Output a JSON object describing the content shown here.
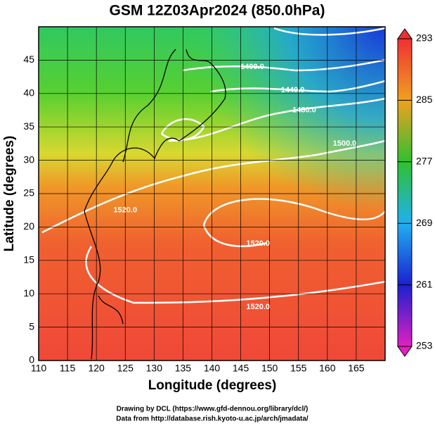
{
  "chart_data": {
    "type": "map",
    "title": "GSM 12Z03Apr2024 (850.0hPa)",
    "xlabel": "Longitude (degrees)",
    "ylabel": "Latitude  (degrees)",
    "xlim": [
      110,
      170
    ],
    "ylim": [
      0,
      50
    ],
    "xticks": [
      110,
      115,
      120,
      125,
      130,
      135,
      140,
      145,
      150,
      155,
      160,
      165
    ],
    "yticks": [
      0,
      5,
      10,
      15,
      20,
      25,
      30,
      35,
      40,
      45
    ],
    "grid": true,
    "colorbar": {
      "lim": [
        253,
        293
      ],
      "ticks": [
        253,
        261,
        269,
        277,
        285,
        293
      ],
      "colors": [
        "#e020c0",
        "#1a20d0",
        "#20b0f0",
        "#30c030",
        "#f0a020",
        "#f03030"
      ]
    },
    "contour_labels": [
      {
        "text": "1400.0",
        "x": 147,
        "y": 44
      },
      {
        "text": "1440.0",
        "x": 154,
        "y": 40.5
      },
      {
        "text": "1480.0",
        "x": 156,
        "y": 37.5
      },
      {
        "text": "1500.0",
        "x": 163,
        "y": 32.5
      },
      {
        "text": "1520.0",
        "x": 125,
        "y": 22.5
      },
      {
        "text": "1520.0",
        "x": 148,
        "y": 17.5
      },
      {
        "text": "1520.0",
        "x": 148,
        "y": 8
      }
    ],
    "credits": [
      "Drawing by DCL (https://www.gfd-dennou.org/library/dcl/)",
      "Data from http://database.rish.kyoto-u.ac.jp/arch/jmadata/"
    ]
  }
}
